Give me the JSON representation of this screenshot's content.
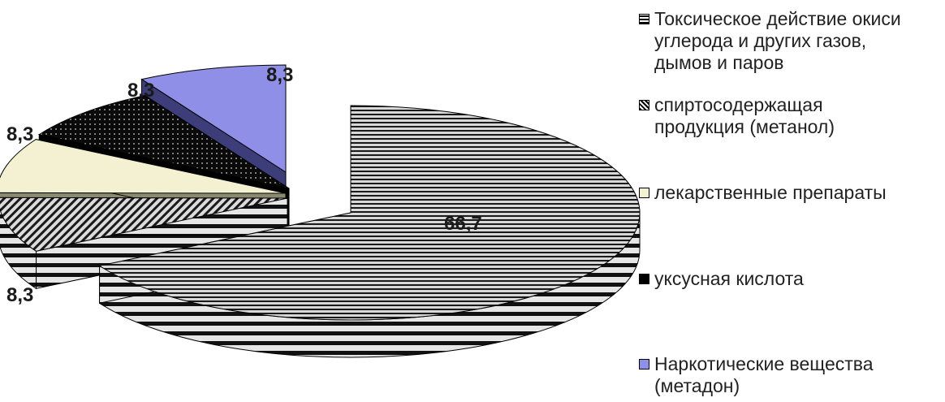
{
  "chart_data": {
    "type": "pie",
    "title": "",
    "categories": [
      "Токсическое действие окиси углерода и других газов, дымов и паров",
      "спиртосодержащая продукция (метанол)",
      "лекарственные препараты",
      "уксусная кислота",
      "Наркотические вещества (метадон)"
    ],
    "values": [
      66.7,
      8.3,
      8.3,
      8.3,
      8.3
    ],
    "value_labels": [
      "66,7",
      "8,3",
      "8,3",
      "8,3",
      "8,3"
    ],
    "three_d": true,
    "exploded": true,
    "legend_position": "right",
    "series_styles": [
      {
        "pattern": "horizontal-stripes",
        "fill": "#9a9a9a",
        "stroke": "#111111"
      },
      {
        "pattern": "diagonal-stripes",
        "fill": "#8a8a8a",
        "stroke": "#111111"
      },
      {
        "pattern": "solid",
        "fill": "#f4f1d2",
        "stroke": "#111111"
      },
      {
        "pattern": "dots",
        "fill": "#0a0a0a",
        "stroke": "#111111"
      },
      {
        "pattern": "solid",
        "fill": "#8f8fe8",
        "stroke": "#111111"
      }
    ]
  },
  "legend": {
    "items": [
      {
        "label": "Токсическое действие окиси",
        "label2": "углерода и других газов,",
        "label3": "дымов и паров"
      },
      {
        "label": "спиртосодержащая",
        "label2": "продукция (метанол)"
      },
      {
        "label": "лекарственные препараты"
      },
      {
        "label": "уксусная кислота"
      },
      {
        "label": "Наркотические вещества",
        "label2": "(метадон)"
      }
    ]
  }
}
